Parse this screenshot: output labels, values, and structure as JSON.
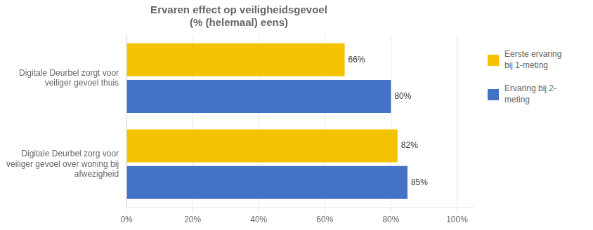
{
  "chart_data": {
    "type": "bar",
    "orientation": "horizontal",
    "title": "Ervaren effect op veiligheidsgevoel",
    "subtitle": "(% (helemaal) eens)",
    "categories": [
      "Digitale Deurbel zorgt voor\nveiliger gevoel thuis",
      "Digitale Deurbel zorg voor\nveiliger gevoel over woning bij\nafwezigheid"
    ],
    "series": [
      {
        "name": "Eerste ervaring\nbij 1-meting",
        "color": "#F5C200",
        "values": [
          66,
          82
        ],
        "value_labels": [
          "66%",
          "82%"
        ]
      },
      {
        "name": "Ervaring bij 2-\nmeting",
        "color": "#4472C4",
        "values": [
          80,
          85
        ],
        "value_labels": [
          "80%",
          "85%"
        ]
      }
    ],
    "xlim": [
      0,
      105
    ],
    "xticks": [
      {
        "value": 0,
        "label": "0%"
      },
      {
        "value": 20,
        "label": "20%"
      },
      {
        "value": 40,
        "label": "40%"
      },
      {
        "value": 60,
        "label": "60%"
      },
      {
        "value": 80,
        "label": "80%"
      },
      {
        "value": 100,
        "label": "100%"
      }
    ],
    "grid": true,
    "legend": "right",
    "data_labels": true
  }
}
